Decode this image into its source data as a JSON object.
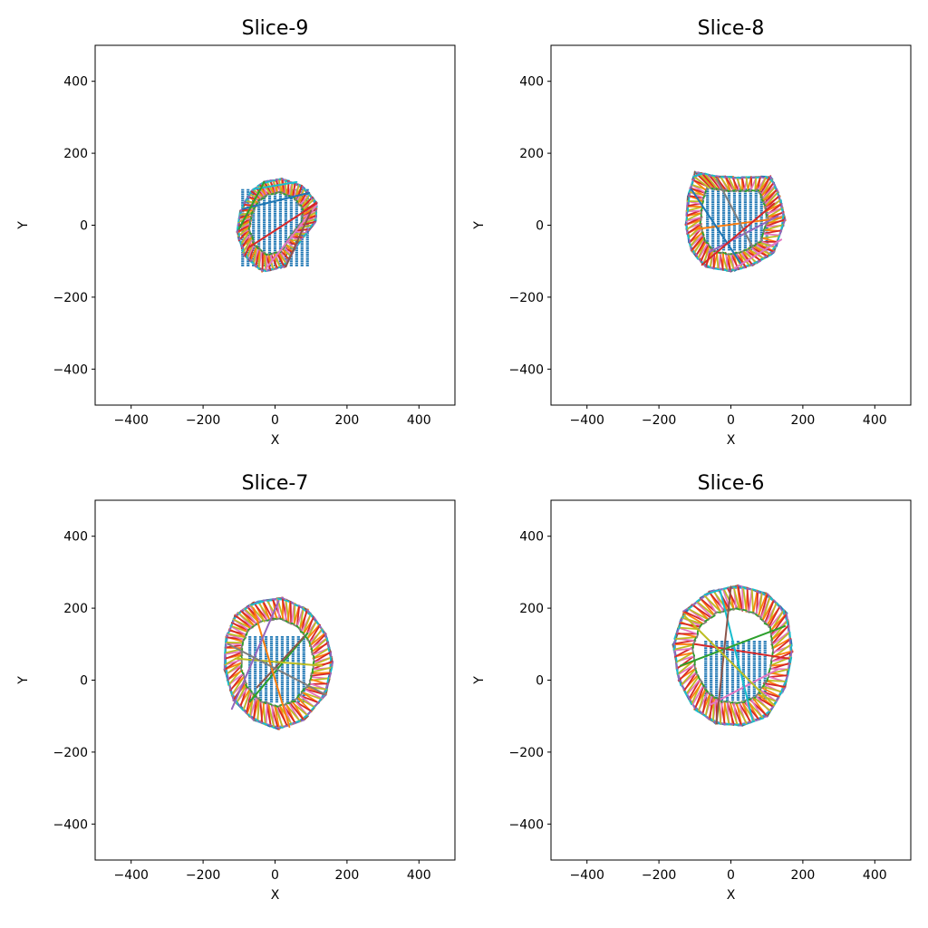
{
  "chart_data": [
    {
      "type": "scatter",
      "title": "Slice-9",
      "xlabel": "X",
      "ylabel": "Y",
      "xlim": [
        -500,
        500
      ],
      "ylim": [
        -500,
        500
      ],
      "xticks": [
        -400,
        -200,
        0,
        200,
        400
      ],
      "yticks": [
        -400,
        -200,
        0,
        200,
        400
      ],
      "grid": false,
      "outline": [
        [
          -30,
          120
        ],
        [
          20,
          128
        ],
        [
          75,
          108
        ],
        [
          115,
          62
        ],
        [
          112,
          10
        ],
        [
          60,
          -55
        ],
        [
          25,
          -115
        ],
        [
          -35,
          -128
        ],
        [
          -85,
          -85
        ],
        [
          -105,
          -20
        ],
        [
          -95,
          40
        ],
        [
          -65,
          95
        ]
      ],
      "grid_points": {
        "x_range": [
          -90,
          95
        ],
        "y_range": [
          -112,
          98
        ],
        "step": 15
      },
      "segments": [
        [
          -90,
          45,
          95,
          90
        ],
        [
          -70,
          -60,
          115,
          60
        ],
        [
          -25,
          -120,
          115,
          55
        ],
        [
          -60,
          100,
          60,
          120
        ],
        [
          -100,
          -10,
          -30,
          120
        ],
        [
          30,
          -115,
          100,
          40
        ]
      ]
    },
    {
      "type": "scatter",
      "title": "Slice-8",
      "xlabel": "X",
      "ylabel": "Y",
      "xlim": [
        -500,
        500
      ],
      "ylim": [
        -500,
        500
      ],
      "xticks": [
        -400,
        -200,
        0,
        200,
        400
      ],
      "yticks": [
        -400,
        -200,
        0,
        200,
        400
      ],
      "grid": false,
      "outline": [
        [
          -100,
          148
        ],
        [
          -40,
          135
        ],
        [
          30,
          132
        ],
        [
          110,
          135
        ],
        [
          135,
          80
        ],
        [
          150,
          15
        ],
        [
          120,
          -75
        ],
        [
          60,
          -110
        ],
        [
          0,
          -128
        ],
        [
          -70,
          -115
        ],
        [
          -110,
          -70
        ],
        [
          -125,
          0
        ],
        [
          -118,
          80
        ]
      ],
      "grid_points": {
        "x_range": [
          -65,
          105
        ],
        "y_range": [
          -68,
          100
        ],
        "step": 15
      },
      "segments": [
        [
          -90,
          -10,
          140,
          20
        ],
        [
          -60,
          -75,
          130,
          25
        ],
        [
          -40,
          130,
          60,
          -60
        ],
        [
          -110,
          100,
          30,
          -110
        ],
        [
          -80,
          -110,
          120,
          60
        ],
        [
          10,
          -120,
          140,
          -40
        ]
      ]
    },
    {
      "type": "scatter",
      "title": "Slice-7",
      "xlabel": "X",
      "ylabel": "Y",
      "xlim": [
        -500,
        500
      ],
      "ylim": [
        -500,
        500
      ],
      "xticks": [
        -400,
        -200,
        0,
        200,
        400
      ],
      "yticks": [
        -400,
        -200,
        0,
        200,
        400
      ],
      "grid": false,
      "outline": [
        [
          -60,
          215
        ],
        [
          20,
          228
        ],
        [
          90,
          195
        ],
        [
          140,
          130
        ],
        [
          160,
          50
        ],
        [
          140,
          -40
        ],
        [
          80,
          -110
        ],
        [
          10,
          -135
        ],
        [
          -60,
          -110
        ],
        [
          -115,
          -55
        ],
        [
          -140,
          30
        ],
        [
          -135,
          120
        ],
        [
          -110,
          180
        ]
      ],
      "grid_points": {
        "x_range": [
          -70,
          90
        ],
        "y_range": [
          -60,
          125
        ],
        "step": 15
      },
      "segments": [
        [
          -70,
          -60,
          90,
          130
        ],
        [
          -50,
          -20,
          80,
          120
        ],
        [
          -110,
          60,
          130,
          40
        ],
        [
          -60,
          200,
          40,
          -130
        ],
        [
          10,
          220,
          -120,
          -80
        ],
        [
          -130,
          100,
          140,
          -40
        ]
      ]
    },
    {
      "type": "scatter",
      "title": "Slice-6",
      "xlabel": "X",
      "ylabel": "Y",
      "xlim": [
        -500,
        500
      ],
      "ylim": [
        -500,
        500
      ],
      "xticks": [
        -400,
        -200,
        0,
        200,
        400
      ],
      "yticks": [
        -400,
        -200,
        0,
        200,
        400
      ],
      "grid": false,
      "outline": [
        [
          -60,
          245
        ],
        [
          20,
          262
        ],
        [
          100,
          240
        ],
        [
          155,
          185
        ],
        [
          170,
          80
        ],
        [
          150,
          -20
        ],
        [
          100,
          -100
        ],
        [
          30,
          -125
        ],
        [
          -40,
          -120
        ],
        [
          -100,
          -80
        ],
        [
          -145,
          0
        ],
        [
          -160,
          100
        ],
        [
          -130,
          190
        ]
      ],
      "grid_points": {
        "x_range": [
          -70,
          100
        ],
        "y_range": [
          -55,
          110
        ],
        "step": 15
      },
      "segments": [
        [
          -100,
          100,
          160,
          60
        ],
        [
          -60,
          -70,
          130,
          30
        ],
        [
          -30,
          250,
          60,
          -110
        ],
        [
          -140,
          40,
          150,
          150
        ],
        [
          0,
          260,
          -40,
          -120
        ],
        [
          -130,
          180,
          120,
          -70
        ]
      ]
    }
  ]
}
